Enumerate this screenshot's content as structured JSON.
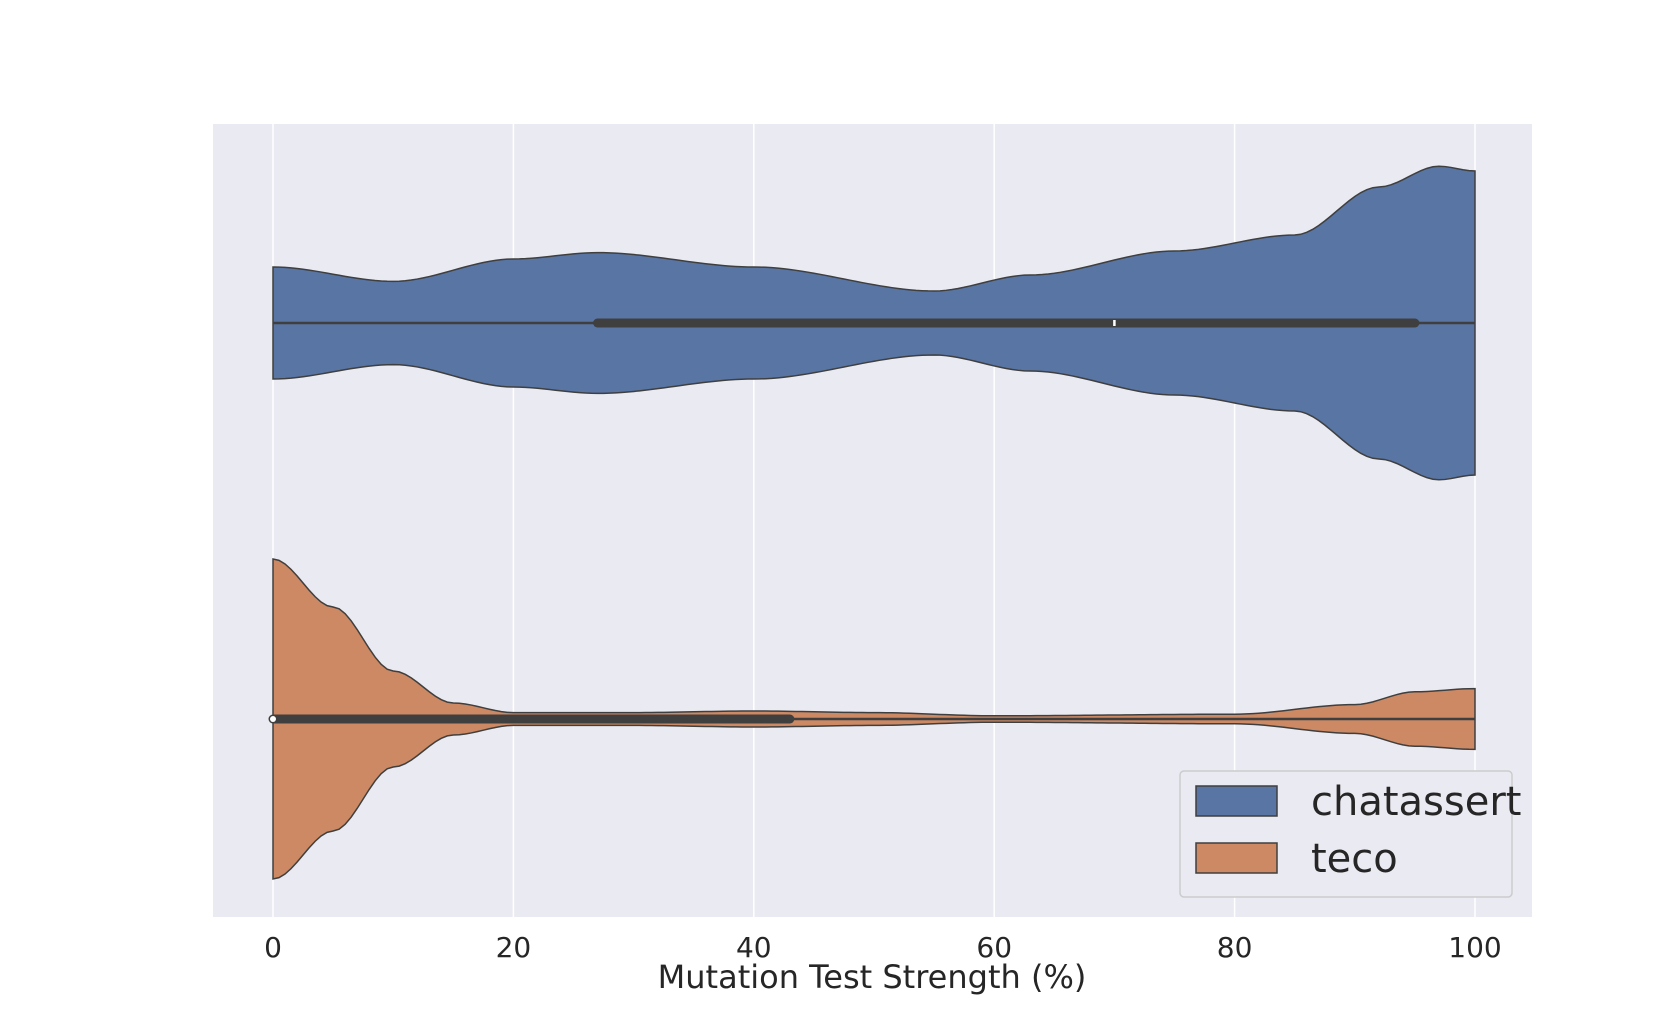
{
  "chart_data": {
    "type": "violin",
    "orientation": "horizontal",
    "xlabel": "Mutation Test Strength (%)",
    "xlim": [
      -5,
      105
    ],
    "xticks": [
      "0",
      "20",
      "40",
      "60",
      "80",
      "100"
    ],
    "grid": true,
    "legend": {
      "placement": "bottom-right"
    },
    "series": [
      {
        "name": "chatassert",
        "color": "#5875a4",
        "density": [
          [
            0,
            0.35
          ],
          [
            10,
            0.26
          ],
          [
            20,
            0.4
          ],
          [
            27,
            0.44
          ],
          [
            40,
            0.35
          ],
          [
            55,
            0.2
          ],
          [
            63,
            0.3
          ],
          [
            75,
            0.45
          ],
          [
            85,
            0.55
          ],
          [
            92,
            0.85
          ],
          [
            97,
            0.98
          ],
          [
            100,
            0.95
          ]
        ],
        "quartiles": [
          27,
          95
        ],
        "median": 70,
        "range": [
          0,
          100
        ]
      },
      {
        "name": "teco",
        "color": "#cc8963",
        "density": [
          [
            0,
            1.0
          ],
          [
            5,
            0.7
          ],
          [
            10,
            0.3
          ],
          [
            15,
            0.1
          ],
          [
            20,
            0.04
          ],
          [
            30,
            0.04
          ],
          [
            40,
            0.05
          ],
          [
            50,
            0.04
          ],
          [
            60,
            0.02
          ],
          [
            80,
            0.03
          ],
          [
            90,
            0.09
          ],
          [
            95,
            0.17
          ],
          [
            100,
            0.19
          ]
        ],
        "quartiles": [
          0,
          43
        ],
        "median": 0,
        "range": [
          0,
          100
        ]
      }
    ]
  }
}
